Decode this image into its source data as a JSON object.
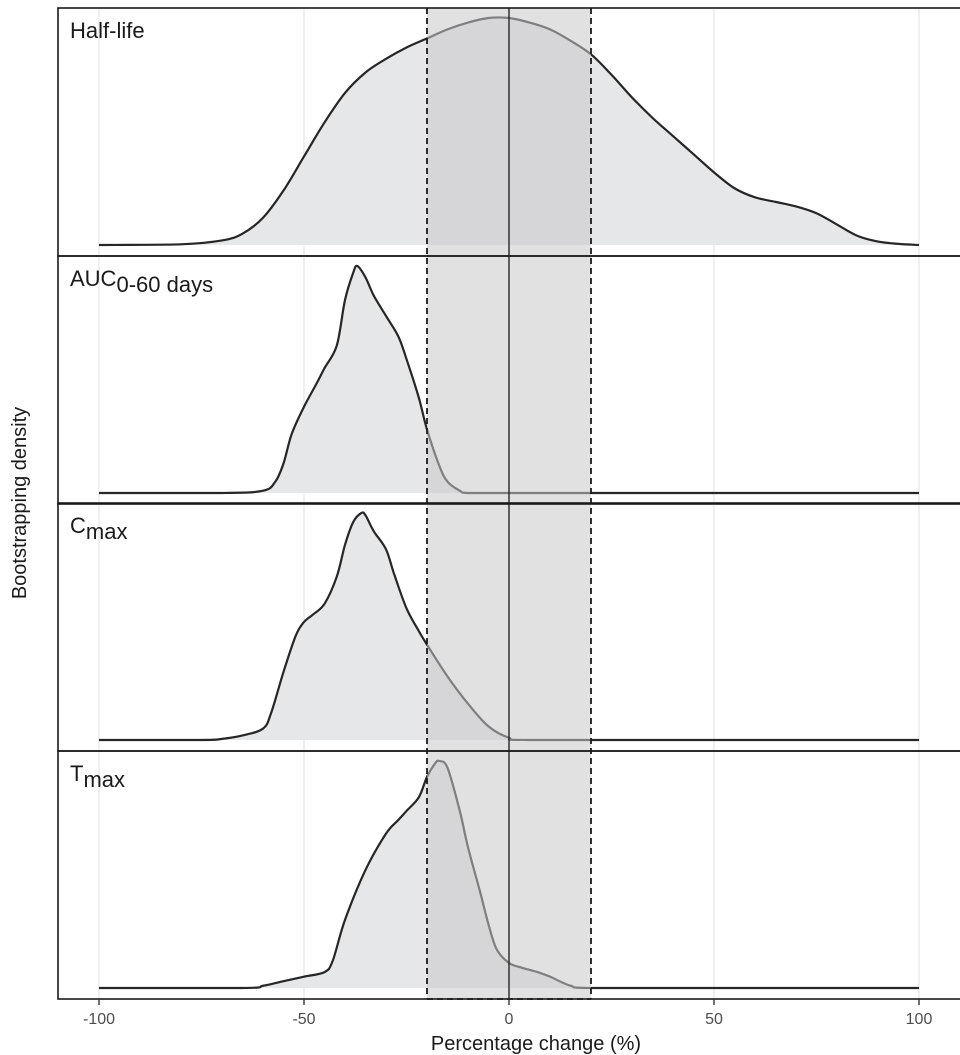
{
  "chart_data": {
    "type": "area",
    "xlabel": "Percentage change (%)",
    "ylabel": "Bootstrapping density",
    "xlim": [
      -110,
      110
    ],
    "xticks": [
      "-100",
      "-50",
      "0",
      "50",
      "100"
    ],
    "xtick_values": [
      -100,
      -50,
      0,
      50,
      100
    ],
    "equivalence_band": [
      -20,
      20
    ],
    "reference_line": 0,
    "grid": true,
    "fill_color": "#e6e7e8",
    "band_color": "#c8c8ca",
    "line_color": "#262626",
    "panels": [
      {
        "name": "Half-life",
        "label_main": "Half-life",
        "label_sub": "",
        "x": [
          -100,
          -80,
          -70,
          -65,
          -60,
          -55,
          -50,
          -45,
          -40,
          -35,
          -30,
          -25,
          -20,
          -15,
          -10,
          -5,
          0,
          5,
          10,
          15,
          20,
          25,
          30,
          35,
          40,
          45,
          50,
          55,
          60,
          65,
          70,
          75,
          80,
          85,
          90,
          95,
          100
        ],
        "y": [
          0.0,
          0.003,
          0.02,
          0.05,
          0.12,
          0.24,
          0.39,
          0.54,
          0.67,
          0.76,
          0.82,
          0.87,
          0.91,
          0.95,
          0.98,
          1.0,
          1.0,
          0.98,
          0.95,
          0.9,
          0.84,
          0.75,
          0.65,
          0.56,
          0.48,
          0.4,
          0.32,
          0.25,
          0.21,
          0.19,
          0.17,
          0.14,
          0.09,
          0.04,
          0.015,
          0.005,
          0.0
        ]
      },
      {
        "name": "AUC0-60 days",
        "label_main": "AUC",
        "label_sub": "0-60 days",
        "x": [
          -100,
          -70,
          -60,
          -57,
          -55,
          -53,
          -50,
          -47,
          -45,
          -42,
          -40,
          -38,
          -37,
          -35,
          -33,
          -30,
          -27,
          -25,
          -22,
          -20,
          -17,
          -15,
          -12,
          -10,
          0,
          50,
          100
        ],
        "y": [
          0.0,
          0.0,
          0.01,
          0.05,
          0.13,
          0.26,
          0.38,
          0.48,
          0.55,
          0.65,
          0.85,
          0.97,
          1.0,
          0.95,
          0.87,
          0.78,
          0.69,
          0.59,
          0.42,
          0.28,
          0.12,
          0.05,
          0.01,
          0.0,
          0.0,
          0.0,
          0.0
        ]
      },
      {
        "name": "Cmax",
        "label_main": "C",
        "label_sub": "max",
        "x": [
          -100,
          -75,
          -70,
          -65,
          -60,
          -58,
          -55,
          -52,
          -50,
          -48,
          -45,
          -42,
          -40,
          -38,
          -36,
          -35,
          -33,
          -30,
          -28,
          -25,
          -22,
          -20,
          -15,
          -10,
          -5,
          0,
          5,
          50,
          100
        ],
        "y": [
          0.0,
          0.0,
          0.005,
          0.02,
          0.05,
          0.12,
          0.3,
          0.46,
          0.52,
          0.55,
          0.6,
          0.72,
          0.86,
          0.96,
          1.0,
          0.99,
          0.92,
          0.84,
          0.73,
          0.58,
          0.48,
          0.42,
          0.28,
          0.16,
          0.06,
          0.01,
          0.0,
          0.0,
          0.0
        ]
      },
      {
        "name": "Tmax",
        "label_main": "T",
        "label_sub": "max",
        "x": [
          -100,
          -65,
          -60,
          -55,
          -50,
          -45,
          -43,
          -40,
          -35,
          -30,
          -27,
          -25,
          -22,
          -20,
          -18,
          -17,
          -15,
          -12,
          -10,
          -7,
          -5,
          -3,
          0,
          3,
          5,
          7,
          10,
          15,
          20,
          50,
          100
        ],
        "y": [
          0.0,
          0.0,
          0.01,
          0.03,
          0.05,
          0.07,
          0.12,
          0.3,
          0.52,
          0.68,
          0.74,
          0.78,
          0.84,
          0.93,
          0.99,
          1.0,
          0.97,
          0.78,
          0.62,
          0.42,
          0.28,
          0.17,
          0.11,
          0.09,
          0.08,
          0.07,
          0.05,
          0.01,
          0.0,
          0.0,
          0.0
        ]
      }
    ]
  }
}
